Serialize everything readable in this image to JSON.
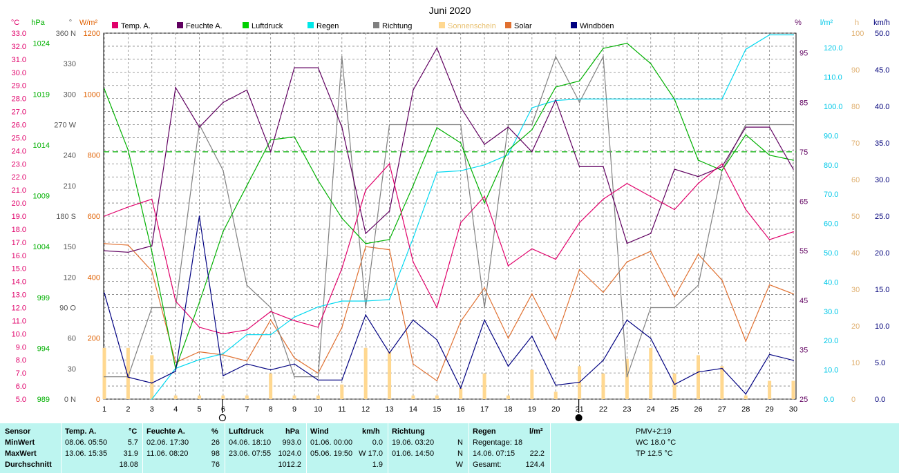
{
  "chart_data": {
    "type": "line",
    "title": "Juni 2020",
    "x": [
      1,
      2,
      3,
      4,
      5,
      6,
      7,
      8,
      9,
      10,
      11,
      12,
      13,
      14,
      15,
      16,
      17,
      18,
      19,
      20,
      21,
      22,
      23,
      24,
      25,
      26,
      27,
      28,
      29,
      30
    ],
    "x_ticks": [
      "1",
      "2",
      "3",
      "4",
      "5",
      "6",
      "7",
      "8",
      "9",
      "10",
      "11",
      "12",
      "13",
      "14",
      "15",
      "16",
      "17",
      "18",
      "19",
      "20",
      "21",
      "22",
      "23",
      "24",
      "25",
      "26",
      "27",
      "28",
      "29",
      "30"
    ],
    "axes": {
      "temp": {
        "unit": "°C",
        "color": "#e0006a",
        "range": [
          5,
          33
        ],
        "ticks": [
          "5.0",
          "6.0",
          "7.0",
          "8.0",
          "9.0",
          "10.0",
          "11.0",
          "12.0",
          "13.0",
          "14.0",
          "15.0",
          "16.0",
          "17.0",
          "18.0",
          "19.0",
          "20.0",
          "21.0",
          "22.0",
          "23.0",
          "24.0",
          "25.0",
          "26.0",
          "27.0",
          "28.0",
          "29.0",
          "30.0",
          "31.0",
          "32.0",
          "33.0"
        ]
      },
      "pressure": {
        "unit": "hPa",
        "color": "#00b000",
        "range": [
          989,
          1025
        ],
        "ticks": [
          "989",
          "994",
          "999",
          "1004",
          "1009",
          "1014",
          "1019",
          "1024"
        ]
      },
      "direction": {
        "unit": "°",
        "color": "#555555",
        "range": [
          0,
          360
        ],
        "ticks": [
          "0 N",
          "30",
          "60",
          "90 O",
          "120",
          "150",
          "180 S",
          "210",
          "240",
          "270 W",
          "300",
          "330",
          "360 N"
        ]
      },
      "solar": {
        "unit": "W/m²",
        "color": "#e06000",
        "range": [
          0,
          1200
        ],
        "ticks": [
          "0",
          "200",
          "400",
          "600",
          "800",
          "1000",
          "1200"
        ]
      },
      "humidity": {
        "unit": "%",
        "color": "#600060",
        "range": [
          25,
          99
        ],
        "ticks": [
          "25",
          "35",
          "45",
          "55",
          "65",
          "75",
          "85",
          "95"
        ]
      },
      "rain": {
        "unit": "l/m²",
        "color": "#00c8e8",
        "range": [
          0,
          125
        ],
        "ticks": [
          "0.0",
          "10.0",
          "20.0",
          "30.0",
          "40.0",
          "50.0",
          "60.0",
          "70.0",
          "80.0",
          "90.0",
          "100.0",
          "110.0",
          "120.0"
        ]
      },
      "sunshine": {
        "unit": "h",
        "color": "#e0b070",
        "range": [
          0,
          100
        ],
        "ticks": [
          "0",
          "10",
          "20",
          "30",
          "40",
          "50",
          "60",
          "70",
          "80",
          "90",
          "100"
        ]
      },
      "wind": {
        "unit": "km/h",
        "color": "#00007a",
        "range": [
          0,
          50
        ],
        "ticks": [
          "0.0",
          "5.0",
          "10.0",
          "15.0",
          "20.0",
          "25.0",
          "30.0",
          "35.0",
          "40.0",
          "45.0",
          "50.0"
        ]
      }
    },
    "series": [
      {
        "name": "Temp. A.",
        "key": "temp",
        "color": "#e0006a",
        "values": [
          19.0,
          19.7,
          20.3,
          12.5,
          10.5,
          10.0,
          10.3,
          11.7,
          11.0,
          10.5,
          15.0,
          21.0,
          23.0,
          15.5,
          12.0,
          18.5,
          20.5,
          15.2,
          16.5,
          15.7,
          18.5,
          20.3,
          21.5,
          20.5,
          19.5,
          21.5,
          23.0,
          19.5,
          17.2,
          17.8
        ]
      },
      {
        "name": "Feuchte A.",
        "key": "humidity",
        "color": "#600060",
        "values": [
          55,
          54.7,
          56,
          88,
          80,
          85,
          87.5,
          75,
          92,
          92,
          80,
          58.5,
          63,
          87.5,
          96,
          84,
          76.5,
          80,
          75,
          85.5,
          72,
          72,
          56.5,
          58.5,
          71.5,
          70,
          72,
          80,
          80,
          71.5
        ]
      },
      {
        "name": "Luftdruck",
        "key": "pressure",
        "color": "#00b000",
        "values": [
          1019.5,
          1013.5,
          1003.5,
          992.0,
          998.5,
          1005.5,
          1010.0,
          1014.5,
          1014.8,
          1010.5,
          1006.8,
          1004.3,
          1004.7,
          1010.0,
          1015.7,
          1014.2,
          1008.3,
          1013.5,
          1015.5,
          1019.7,
          1020.3,
          1023.5,
          1024.0,
          1022.0,
          1018.5,
          1012.5,
          1011.5,
          1015.0,
          1013.0,
          1012.5
        ]
      },
      {
        "name": "Regen",
        "key": "rain",
        "color": "#00d8f0",
        "values": [
          null,
          null,
          0.0,
          10.5,
          13.5,
          15.5,
          22.0,
          22.0,
          28.0,
          31.5,
          33.5,
          33.5,
          34.0,
          55.0,
          77.5,
          78.0,
          80.0,
          83.5,
          99.5,
          102.0,
          102.5,
          102.5,
          102.5,
          102.5,
          102.5,
          102.5,
          102.5,
          119.5,
          124.4,
          124.4
        ]
      },
      {
        "name": "Richtung",
        "key": "direction",
        "color": "#808080",
        "values": [
          22,
          22,
          90,
          90,
          270,
          225,
          112,
          90,
          22,
          22,
          337,
          90,
          270,
          270,
          270,
          270,
          90,
          270,
          270,
          337,
          292,
          337,
          22,
          90,
          90,
          112,
          225,
          270,
          270,
          270
        ]
      },
      {
        "name": "Sonnenschein",
        "key": "sunshine",
        "color": "#ffd890",
        "type": "bar",
        "values": [
          14,
          14,
          12,
          1,
          1,
          1,
          1,
          7,
          1,
          1,
          4,
          14,
          13,
          1,
          1,
          3,
          7,
          1,
          8,
          2,
          9,
          7,
          11,
          14,
          7,
          12,
          9,
          1,
          5,
          5
        ]
      },
      {
        "name": "Solar",
        "key": "solar",
        "color": "#e07030",
        "values": [
          510,
          505,
          420,
          120,
          155,
          145,
          125,
          260,
          135,
          85,
          235,
          500,
          490,
          115,
          60,
          255,
          365,
          200,
          345,
          195,
          425,
          350,
          450,
          485,
          335,
          475,
          390,
          190,
          375,
          345
        ]
      },
      {
        "name": "Windböen",
        "key": "wind",
        "color": "#000080",
        "values": [
          14.5,
          3.0,
          2.2,
          3.8,
          25.0,
          3.2,
          4.8,
          4.0,
          4.8,
          2.6,
          2.6,
          11.5,
          6.3,
          10.8,
          8.1,
          1.5,
          10.8,
          4.5,
          8.6,
          1.9,
          2.3,
          5.3,
          10.8,
          8.3,
          2.0,
          3.7,
          4.2,
          0.7,
          6.1,
          5.3
        ]
      }
    ],
    "reference_line": {
      "key": "humidity",
      "value": 75,
      "color": "#00b000"
    },
    "moon_markers": [
      {
        "x": 6,
        "symbol": "full"
      },
      {
        "x": 21,
        "symbol": "new"
      }
    ],
    "grid": true
  },
  "summary": {
    "sensor_header": "Sensor",
    "row_labels": [
      "MinWert",
      "MaxWert",
      "Durchschnitt"
    ],
    "temp": {
      "header": "Temp. A.",
      "unit": "°C",
      "min_time": "08.06.  05:50",
      "min": "5.7",
      "max_time": "13.06.  15:35",
      "max": "31.9",
      "avg": "18.08"
    },
    "humidity": {
      "header": "Feuchte A.",
      "unit": "%",
      "min_time": "02.06.  17:30",
      "min": "26",
      "max_time": "11.06.  08:20",
      "max": "98",
      "avg": "76"
    },
    "pressure": {
      "header": "Luftdruck",
      "unit": "hPa",
      "min_time": "04.06.  18:10",
      "min": "993.0",
      "max_time": "23.06.  07:55",
      "max": "1024.0",
      "avg": "1012.2"
    },
    "wind": {
      "header": "Wind",
      "unit": "km/h",
      "min_time": "01.06.  00:00",
      "min": "0.0",
      "max_time": "05.06.  19:50",
      "max": "W 17.0",
      "avg": "1.9"
    },
    "direction": {
      "header": "Richtung",
      "min_time": "19.06.  03:20",
      "min": "N",
      "max_time": "01.06.  14:50",
      "max": "N",
      "avg": "W"
    },
    "rain": {
      "header": "Regen",
      "unit": "l/m²",
      "line1": "Regentage: 18",
      "line2_label": "14.06.  07:15",
      "line2_value": "22.2",
      "line3_label": "Gesamt:",
      "line3_value": "124.4"
    },
    "pmv": {
      "title": "PMV+2:19",
      "wc": "WC 18.0 °C",
      "tp": "TP 12.5 °C"
    }
  }
}
